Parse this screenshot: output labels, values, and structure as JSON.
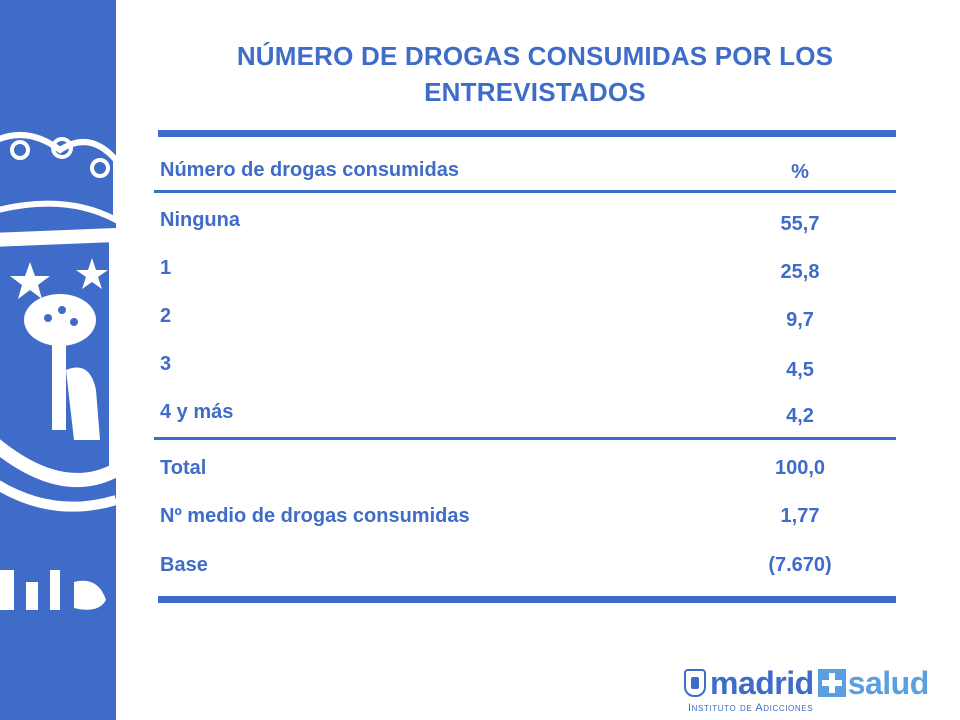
{
  "title": "NÚMERO DE DROGAS CONSUMIDAS POR LOS ENTREVISTADOS",
  "table": {
    "header_label": "Número de drogas consumidas",
    "header_value": "%",
    "rows": [
      {
        "label": "Ninguna",
        "value": "55,7"
      },
      {
        "label": "1",
        "value": "25,8"
      },
      {
        "label": "2",
        "value": "9,7"
      },
      {
        "label": "3",
        "value": "4,5"
      },
      {
        "label": "4 y más",
        "value": "4,2"
      }
    ],
    "summary": [
      {
        "label": "Total",
        "value": "100,0"
      },
      {
        "label": "Nº medio de drogas consumidas",
        "value": "1,77"
      },
      {
        "label": "Base",
        "value": "(7.670)"
      }
    ]
  },
  "footer": {
    "brand_left": "madrid",
    "brand_right": "salud",
    "subtitle": "Instituto de Adicciones"
  },
  "colors": {
    "primary": "#3f6cc8",
    "accent": "#5aa0e0"
  },
  "icons": {
    "side_band": "madrid-coat-of-arms",
    "logo_seal": "madrid-seal-icon",
    "logo_plus": "plus-icon"
  }
}
